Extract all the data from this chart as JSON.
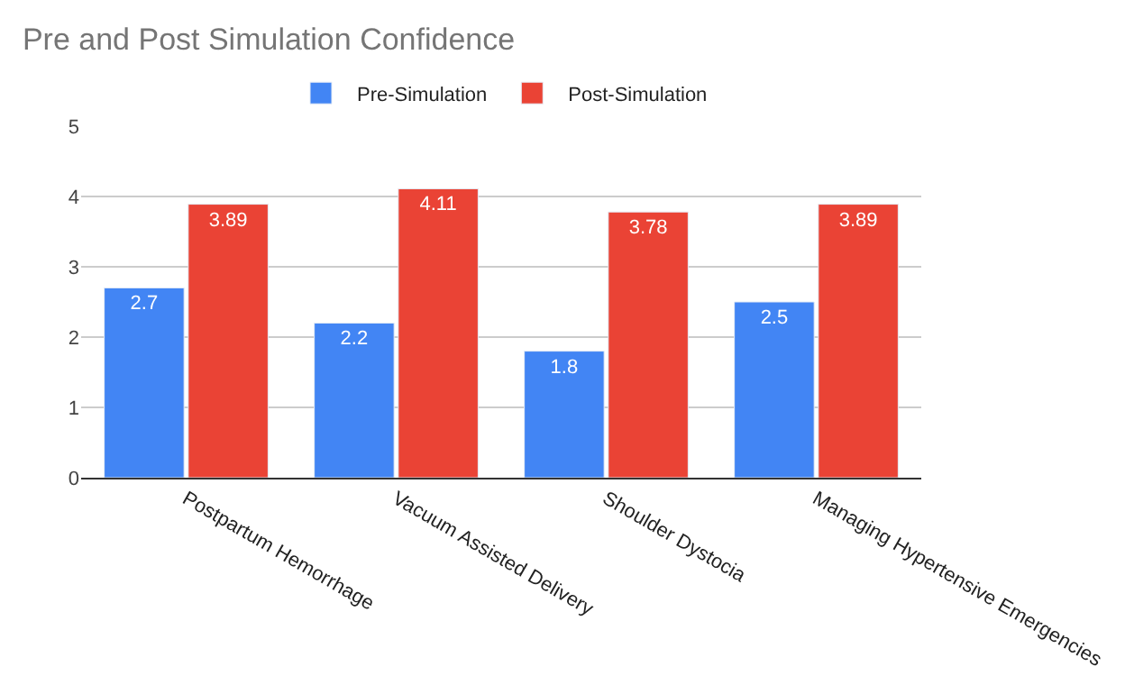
{
  "chart_data": {
    "type": "bar",
    "title": "Pre and Post Simulation Confidence",
    "categories": [
      "Postpartum Hemorrhage",
      "Vacuum Assisted Delivery",
      "Shoulder Dystocia",
      "Managing Hypertensive Emergencies"
    ],
    "series": [
      {
        "name": "Pre-Simulation",
        "color": "#4285f4",
        "values": [
          2.7,
          2.2,
          1.8,
          2.5
        ]
      },
      {
        "name": "Post-Simulation",
        "color": "#ea4335",
        "values": [
          3.89,
          4.11,
          3.78,
          3.89
        ]
      }
    ],
    "ylim": [
      0,
      5
    ],
    "yticks": [
      0,
      1,
      2,
      3,
      4,
      5
    ],
    "grid": "y",
    "legend": "top",
    "data_labels": true
  }
}
